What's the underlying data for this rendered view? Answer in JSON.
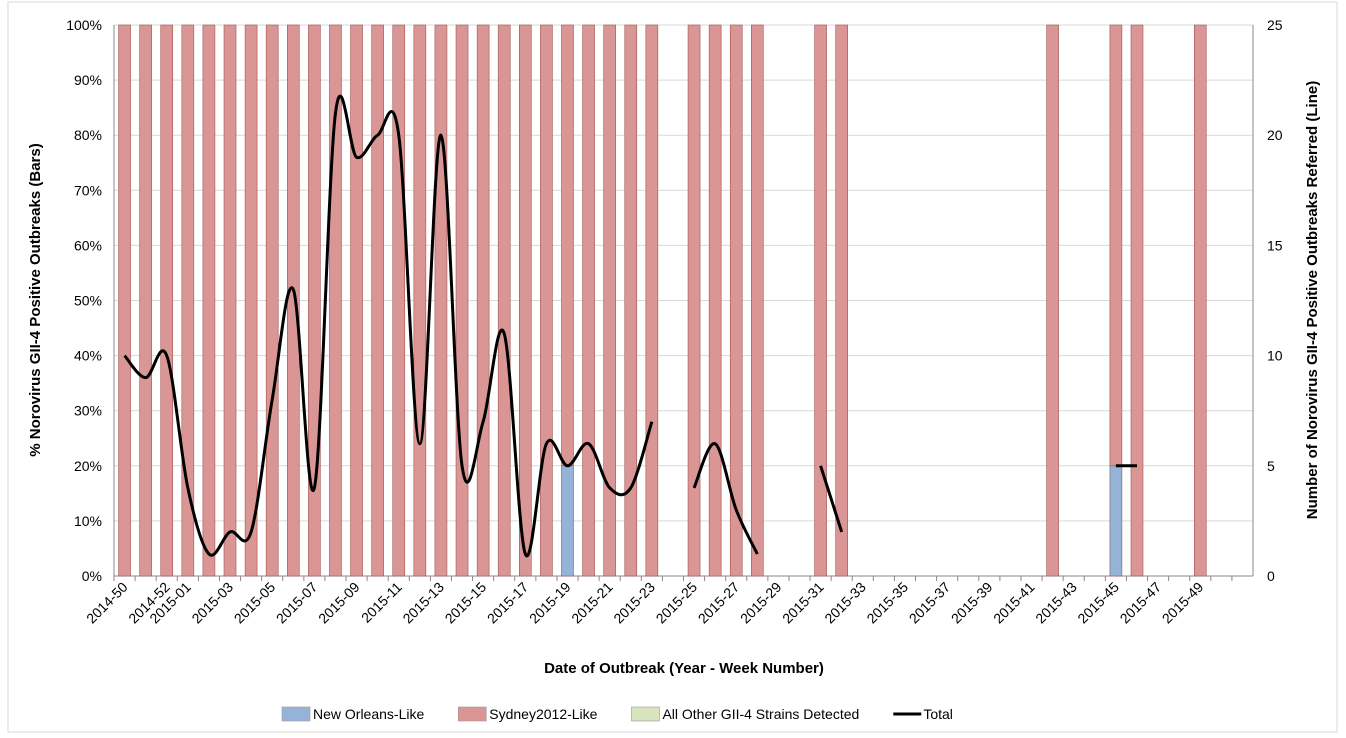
{
  "chart_data": {
    "type": "bar",
    "stacked": true,
    "x_label": "Date of Outbreak (Year - Week Number)",
    "y_label": "% Norovirus GII-4 Positive Outbreaks (Bars)",
    "y2_label": "Number of Norovirus GII-4 Positive Outbreaks Referred (Line)",
    "categories": [
      "2014-50",
      null,
      "2014-52",
      "2015-01",
      null,
      "2015-03",
      null,
      "2015-05",
      null,
      "2015-07",
      null,
      "2015-09",
      null,
      "2015-11",
      null,
      "2015-13",
      null,
      "2015-15",
      null,
      "2015-17",
      null,
      "2015-19",
      null,
      "2015-21",
      null,
      "2015-23",
      null,
      "2015-25",
      null,
      "2015-27",
      null,
      "2015-29",
      null,
      "2015-31",
      null,
      "2015-33",
      null,
      "2015-35",
      null,
      "2015-37",
      null,
      "2015-39",
      null,
      "2015-41",
      null,
      "2015-43",
      null,
      "2015-45",
      null,
      "2015-47",
      null,
      "2015-49",
      null,
      null
    ],
    "ylim": [
      0,
      100
    ],
    "yticks": [
      {
        "value": 0,
        "label": "0%"
      },
      {
        "value": 10,
        "label": "10%"
      },
      {
        "value": 20,
        "label": "20%"
      },
      {
        "value": 30,
        "label": "30%"
      },
      {
        "value": 40,
        "label": "40%"
      },
      {
        "value": 50,
        "label": "50%"
      },
      {
        "value": 60,
        "label": "60%"
      },
      {
        "value": 70,
        "label": "70%"
      },
      {
        "value": 80,
        "label": "80%"
      },
      {
        "value": 90,
        "label": "90%"
      },
      {
        "value": 100,
        "label": "100%"
      }
    ],
    "y2lim": [
      0,
      25
    ],
    "y2ticks": [
      0,
      5,
      10,
      15,
      20,
      25
    ],
    "grid": true,
    "series": [
      {
        "name": "New Orleans-Like",
        "color": "#95b3d7",
        "values": [
          0,
          0,
          0,
          0,
          0,
          0,
          0,
          0,
          0,
          0,
          0,
          0,
          0,
          0,
          0,
          0,
          0,
          0,
          0,
          0,
          0,
          20,
          0,
          0,
          0,
          0,
          null,
          0,
          0,
          0,
          0,
          null,
          null,
          0,
          0,
          null,
          null,
          null,
          null,
          null,
          null,
          null,
          null,
          null,
          0,
          null,
          null,
          20,
          0,
          null,
          null,
          0,
          null,
          null
        ]
      },
      {
        "name": "Sydney2012-Like",
        "color": "#d99694",
        "values": [
          100,
          100,
          100,
          100,
          100,
          100,
          100,
          100,
          100,
          100,
          100,
          100,
          100,
          100,
          100,
          100,
          100,
          100,
          100,
          100,
          100,
          80,
          100,
          100,
          100,
          100,
          null,
          100,
          100,
          100,
          100,
          null,
          null,
          100,
          100,
          null,
          null,
          null,
          null,
          null,
          null,
          null,
          null,
          null,
          100,
          null,
          null,
          80,
          100,
          null,
          null,
          100,
          null,
          null
        ]
      },
      {
        "name": "All Other GII-4 Strains Detected",
        "color": "#d7e4bd",
        "values": [
          0,
          0,
          0,
          0,
          0,
          0,
          0,
          0,
          0,
          0,
          0,
          0,
          0,
          0,
          0,
          0,
          0,
          0,
          0,
          0,
          0,
          0,
          0,
          0,
          0,
          0,
          null,
          0,
          0,
          0,
          0,
          null,
          null,
          0,
          0,
          null,
          null,
          null,
          null,
          null,
          null,
          null,
          null,
          null,
          0,
          null,
          null,
          0,
          0,
          null,
          null,
          0,
          null,
          null
        ]
      },
      {
        "name": "Total",
        "color": "#000000",
        "axis": "y2",
        "values": [
          10,
          9,
          10,
          4,
          1,
          2,
          2,
          8,
          13,
          4,
          21,
          19,
          20,
          20,
          6,
          20,
          5,
          7,
          11,
          1,
          6,
          5,
          6,
          4,
          4,
          7,
          null,
          4,
          6,
          3,
          1,
          null,
          null,
          5,
          2,
          null,
          null,
          null,
          null,
          null,
          null,
          null,
          null,
          null,
          null,
          null,
          null,
          5,
          5,
          null,
          null,
          null,
          null,
          null
        ]
      }
    ]
  }
}
